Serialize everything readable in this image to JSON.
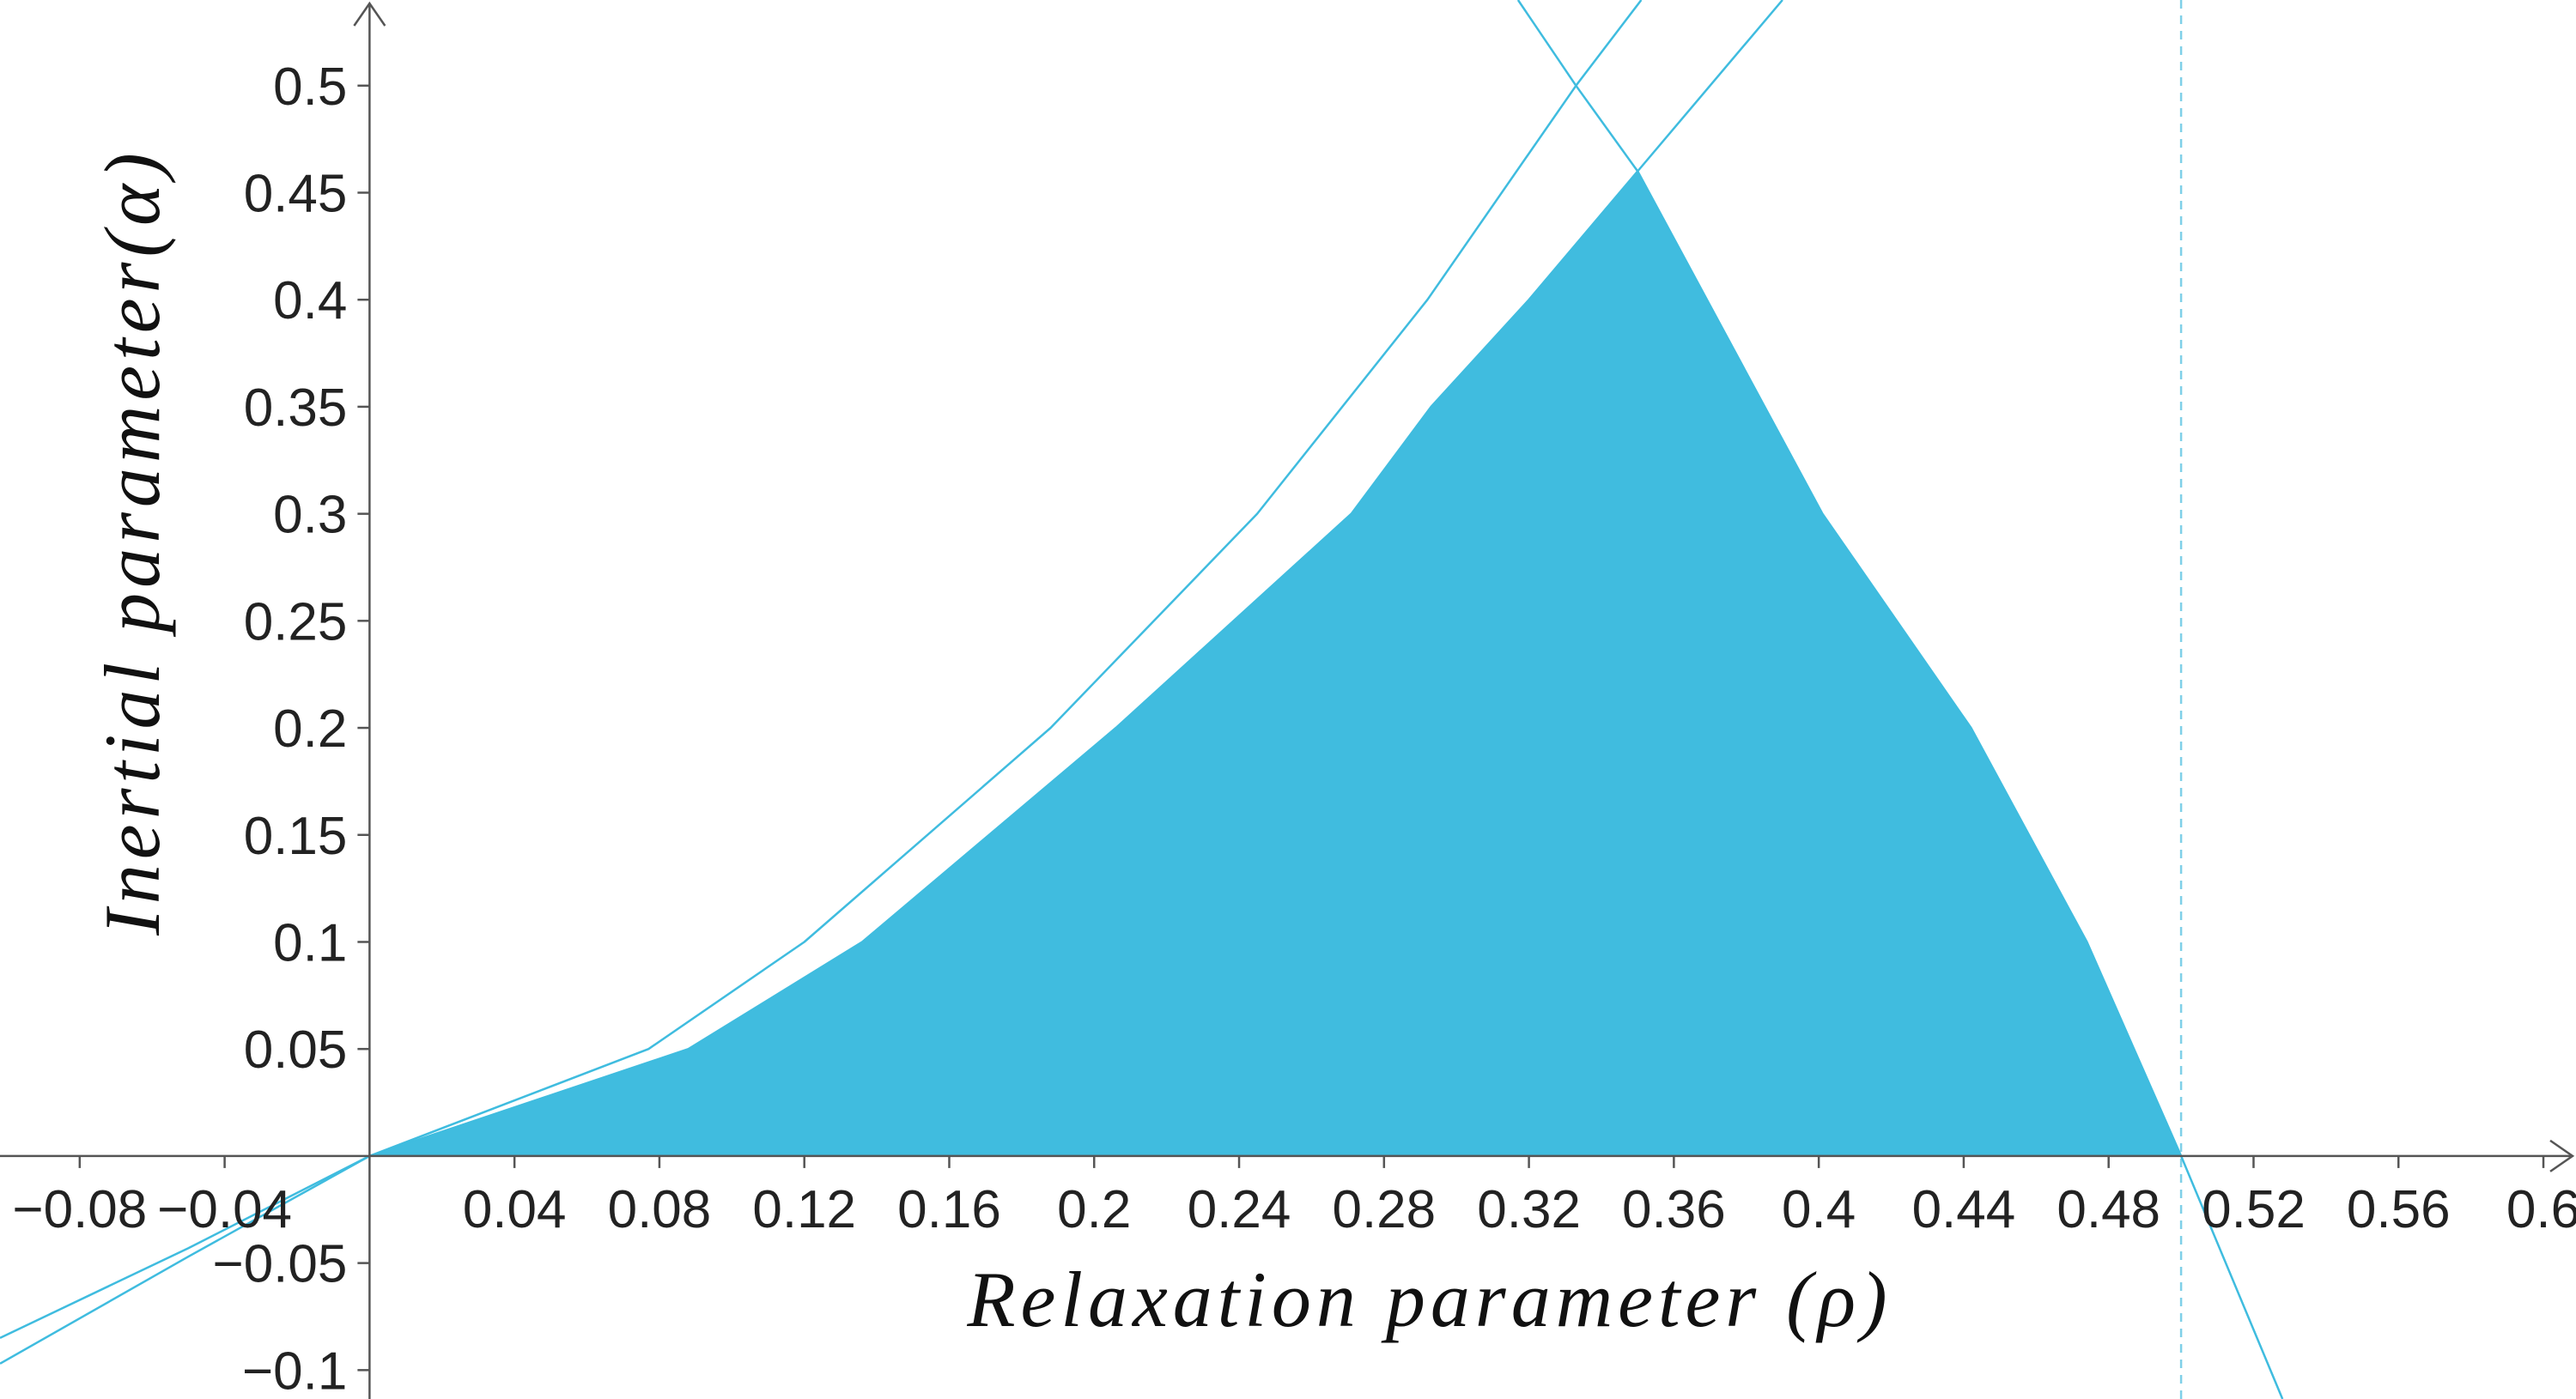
{
  "chart_data": {
    "type": "line",
    "xlabel": "Relaxation parameter (ρ)",
    "ylabel": "Inertial parameter(α)",
    "xlim": [
      -0.102,
      0.609
    ],
    "ylim": [
      -0.1135,
      0.54
    ],
    "xticks": [
      {
        "value": -0.08,
        "label": "−0.08"
      },
      {
        "value": -0.04,
        "label": "−0.04"
      },
      0.04,
      0.08,
      0.12,
      0.16,
      0.2,
      0.24,
      0.28,
      0.32,
      0.36,
      0.4,
      0.44,
      0.48,
      0.52,
      0.56,
      0.6
    ],
    "yticks": [
      {
        "value": -0.1,
        "label": "−0.1"
      },
      {
        "value": -0.05,
        "label": "−0.05"
      },
      0.05,
      0.1,
      0.15,
      0.2,
      0.25,
      0.3,
      0.35,
      0.4,
      0.45,
      0.5
    ],
    "vline": 0.5,
    "series": [
      {
        "color": "#3fbcdf",
        "x": [
          -0.102,
          -0.05,
          0,
          0.088,
          0.136,
          0.206,
          0.271,
          0.293,
          0.32,
          0.35,
          0.39
        ],
        "values": [
          -0.085,
          -0.043,
          0,
          0.05,
          0.1,
          0.2,
          0.3,
          0.35,
          0.4,
          0.46,
          0.54
        ]
      },
      {
        "color": "#3fbcdf",
        "x": [
          -0.102,
          -0.05,
          0,
          0.077,
          0.12,
          0.188,
          0.245,
          0.292,
          0.333,
          0.351
        ],
        "values": [
          -0.097,
          -0.047,
          0,
          0.05,
          0.1,
          0.2,
          0.3,
          0.4,
          0.5,
          0.54
        ]
      },
      {
        "color": "#3fbcdf",
        "x": [
          0.317,
          0.333,
          0.35,
          0.401,
          0.442,
          0.474,
          0.5,
          0.528
        ],
        "values": [
          0.54,
          0.5,
          0.46,
          0.3,
          0.2,
          0.1,
          0,
          -0.1135
        ]
      }
    ],
    "region": {
      "color": "#40bcdf",
      "x": [
        0,
        0.088,
        0.136,
        0.206,
        0.271,
        0.293,
        0.32,
        0.35,
        0.401,
        0.442,
        0.474,
        0.5
      ],
      "values": [
        0,
        0.05,
        0.1,
        0.2,
        0.3,
        0.35,
        0.4,
        0.46,
        0.3,
        0.2,
        0.1,
        0
      ]
    }
  }
}
